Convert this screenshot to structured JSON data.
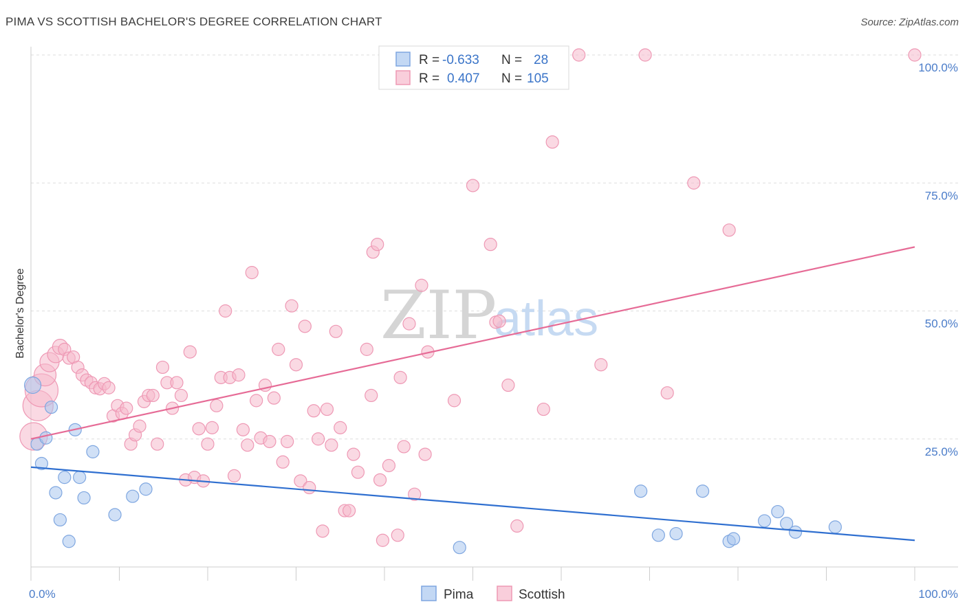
{
  "title": "PIMA VS SCOTTISH BACHELOR'S DEGREE CORRELATION CHART",
  "source": "Source: ZipAtlas.com",
  "watermark": {
    "zip": "ZIP",
    "atlas": "atlas"
  },
  "colors": {
    "pima": "#a9c7ef",
    "pima_stroke": "#7ea6e0",
    "pima_line": "#2f6fd0",
    "scottish": "#f6b9cc",
    "scottish_stroke": "#ee98b4",
    "scottish_line": "#e66b96",
    "grid": "#dddddd",
    "tick_label": "#4a7cc9"
  },
  "legend": {
    "rows": [
      {
        "r_label": "R =",
        "r_value": "-0.633",
        "n_label": "N =",
        "n_value": "28"
      },
      {
        "r_label": "R =",
        "r_value": "0.407",
        "n_label": "N =",
        "n_value": "105"
      }
    ]
  },
  "chart_data": {
    "type": "scatter",
    "title": "PIMA VS SCOTTISH BACHELOR'S DEGREE CORRELATION CHART",
    "xlabel": "",
    "ylabel": "Bachelor's Degree",
    "xlim": [
      0,
      100
    ],
    "ylim": [
      0,
      100
    ],
    "x_ticks": [
      "0.0%",
      "100.0%"
    ],
    "y_ticks": [
      "25.0%",
      "50.0%",
      "75.0%",
      "100.0%"
    ],
    "y_tick_values": [
      25,
      50,
      75,
      100
    ],
    "grid": true,
    "legend_position": "top-center",
    "series": [
      {
        "name": "Pima",
        "r": -0.633,
        "n": 28,
        "trend": [
          [
            0,
            19.5
          ],
          [
            100,
            5.2
          ]
        ],
        "points": [
          {
            "x": 0.2,
            "y": 35.5,
            "s": 12
          },
          {
            "x": 0.7,
            "y": 24.0,
            "s": 9
          },
          {
            "x": 1.2,
            "y": 20.2,
            "s": 9
          },
          {
            "x": 1.7,
            "y": 25.2,
            "s": 9
          },
          {
            "x": 2.3,
            "y": 31.2,
            "s": 9
          },
          {
            "x": 2.8,
            "y": 14.5,
            "s": 9
          },
          {
            "x": 3.3,
            "y": 9.2,
            "s": 9
          },
          {
            "x": 3.8,
            "y": 17.5,
            "s": 9
          },
          {
            "x": 4.3,
            "y": 5.0,
            "s": 9
          },
          {
            "x": 5.0,
            "y": 26.8,
            "s": 9
          },
          {
            "x": 5.5,
            "y": 17.5,
            "s": 9
          },
          {
            "x": 6.0,
            "y": 13.5,
            "s": 9
          },
          {
            "x": 7.0,
            "y": 22.5,
            "s": 9
          },
          {
            "x": 9.5,
            "y": 10.2,
            "s": 9
          },
          {
            "x": 11.5,
            "y": 13.8,
            "s": 9
          },
          {
            "x": 13.0,
            "y": 15.2,
            "s": 9
          },
          {
            "x": 48.5,
            "y": 3.8,
            "s": 9
          },
          {
            "x": 69.0,
            "y": 14.8,
            "s": 9
          },
          {
            "x": 71.0,
            "y": 6.2,
            "s": 9
          },
          {
            "x": 73.0,
            "y": 6.5,
            "s": 9
          },
          {
            "x": 76.0,
            "y": 14.8,
            "s": 9
          },
          {
            "x": 79.0,
            "y": 5.0,
            "s": 9
          },
          {
            "x": 79.5,
            "y": 5.5,
            "s": 9
          },
          {
            "x": 83.0,
            "y": 9.0,
            "s": 9
          },
          {
            "x": 84.5,
            "y": 10.8,
            "s": 9
          },
          {
            "x": 85.5,
            "y": 8.5,
            "s": 9
          },
          {
            "x": 86.5,
            "y": 6.8,
            "s": 9
          },
          {
            "x": 91.0,
            "y": 7.8,
            "s": 9
          }
        ]
      },
      {
        "name": "Scottish",
        "r": 0.407,
        "n": 105,
        "trend": [
          [
            0,
            25.0
          ],
          [
            100,
            62.5
          ]
        ],
        "points": [
          {
            "x": 0.3,
            "y": 25.5,
            "s": 20
          },
          {
            "x": 0.8,
            "y": 31.5,
            "s": 22
          },
          {
            "x": 1.2,
            "y": 34.5,
            "s": 24
          },
          {
            "x": 1.6,
            "y": 37.5,
            "s": 16
          },
          {
            "x": 2.1,
            "y": 40.0,
            "s": 14
          },
          {
            "x": 2.8,
            "y": 41.5,
            "s": 12
          },
          {
            "x": 3.3,
            "y": 43.0,
            "s": 11
          },
          {
            "x": 3.8,
            "y": 42.5,
            "s": 9
          },
          {
            "x": 4.3,
            "y": 40.8,
            "s": 9
          },
          {
            "x": 4.8,
            "y": 41.0,
            "s": 9
          },
          {
            "x": 5.3,
            "y": 39.0,
            "s": 9
          },
          {
            "x": 5.8,
            "y": 37.5,
            "s": 9
          },
          {
            "x": 6.3,
            "y": 36.5,
            "s": 9
          },
          {
            "x": 6.8,
            "y": 36.0,
            "s": 9
          },
          {
            "x": 7.3,
            "y": 35.0,
            "s": 9
          },
          {
            "x": 7.8,
            "y": 34.8,
            "s": 9
          },
          {
            "x": 8.3,
            "y": 35.8,
            "s": 9
          },
          {
            "x": 8.8,
            "y": 35.0,
            "s": 9
          },
          {
            "x": 9.3,
            "y": 29.5,
            "s": 9
          },
          {
            "x": 9.8,
            "y": 31.5,
            "s": 9
          },
          {
            "x": 10.3,
            "y": 30.0,
            "s": 9
          },
          {
            "x": 10.8,
            "y": 31.0,
            "s": 9
          },
          {
            "x": 11.3,
            "y": 24.0,
            "s": 9
          },
          {
            "x": 11.8,
            "y": 25.8,
            "s": 9
          },
          {
            "x": 12.3,
            "y": 27.5,
            "s": 9
          },
          {
            "x": 12.8,
            "y": 32.3,
            "s": 9
          },
          {
            "x": 13.3,
            "y": 33.5,
            "s": 9
          },
          {
            "x": 13.8,
            "y": 33.5,
            "s": 9
          },
          {
            "x": 14.3,
            "y": 24.0,
            "s": 9
          },
          {
            "x": 14.9,
            "y": 39.0,
            "s": 9
          },
          {
            "x": 15.4,
            "y": 36.0,
            "s": 9
          },
          {
            "x": 16.0,
            "y": 31.0,
            "s": 9
          },
          {
            "x": 16.5,
            "y": 36.0,
            "s": 9
          },
          {
            "x": 17.0,
            "y": 33.5,
            "s": 9
          },
          {
            "x": 17.5,
            "y": 17.0,
            "s": 9
          },
          {
            "x": 18.0,
            "y": 42.0,
            "s": 9
          },
          {
            "x": 18.5,
            "y": 17.5,
            "s": 9
          },
          {
            "x": 19.0,
            "y": 27.0,
            "s": 9
          },
          {
            "x": 19.5,
            "y": 16.8,
            "s": 9
          },
          {
            "x": 20.0,
            "y": 24.0,
            "s": 9
          },
          {
            "x": 20.5,
            "y": 27.2,
            "s": 9
          },
          {
            "x": 21.0,
            "y": 31.5,
            "s": 9
          },
          {
            "x": 21.5,
            "y": 37.0,
            "s": 9
          },
          {
            "x": 22.0,
            "y": 50.0,
            "s": 9
          },
          {
            "x": 22.5,
            "y": 37.0,
            "s": 9
          },
          {
            "x": 23.0,
            "y": 17.8,
            "s": 9
          },
          {
            "x": 23.5,
            "y": 37.5,
            "s": 9
          },
          {
            "x": 24.0,
            "y": 26.8,
            "s": 9
          },
          {
            "x": 24.5,
            "y": 23.8,
            "s": 9
          },
          {
            "x": 25.0,
            "y": 57.5,
            "s": 9
          },
          {
            "x": 25.5,
            "y": 32.5,
            "s": 9
          },
          {
            "x": 26.0,
            "y": 25.2,
            "s": 9
          },
          {
            "x": 26.5,
            "y": 35.5,
            "s": 9
          },
          {
            "x": 27.0,
            "y": 24.5,
            "s": 9
          },
          {
            "x": 27.5,
            "y": 33.0,
            "s": 9
          },
          {
            "x": 28.0,
            "y": 42.5,
            "s": 9
          },
          {
            "x": 28.5,
            "y": 20.5,
            "s": 9
          },
          {
            "x": 29.0,
            "y": 24.5,
            "s": 9
          },
          {
            "x": 29.5,
            "y": 51.0,
            "s": 9
          },
          {
            "x": 30.0,
            "y": 39.5,
            "s": 9
          },
          {
            "x": 30.5,
            "y": 16.8,
            "s": 9
          },
          {
            "x": 31.0,
            "y": 47.0,
            "s": 9
          },
          {
            "x": 31.5,
            "y": 15.5,
            "s": 9
          },
          {
            "x": 32.0,
            "y": 30.5,
            "s": 9
          },
          {
            "x": 32.5,
            "y": 25.0,
            "s": 9
          },
          {
            "x": 33.0,
            "y": 7.0,
            "s": 9
          },
          {
            "x": 33.5,
            "y": 30.8,
            "s": 9
          },
          {
            "x": 34.0,
            "y": 23.8,
            "s": 9
          },
          {
            "x": 34.5,
            "y": 46.0,
            "s": 9
          },
          {
            "x": 35.0,
            "y": 27.2,
            "s": 9
          },
          {
            "x": 35.5,
            "y": 11.0,
            "s": 9
          },
          {
            "x": 36.0,
            "y": 11.0,
            "s": 9
          },
          {
            "x": 36.5,
            "y": 22.0,
            "s": 9
          },
          {
            "x": 37.0,
            "y": 18.5,
            "s": 9
          },
          {
            "x": 38.0,
            "y": 42.5,
            "s": 9
          },
          {
            "x": 38.7,
            "y": 61.5,
            "s": 9
          },
          {
            "x": 38.5,
            "y": 33.5,
            "s": 9
          },
          {
            "x": 39.2,
            "y": 63.0,
            "s": 9
          },
          {
            "x": 39.5,
            "y": 17.0,
            "s": 9
          },
          {
            "x": 39.8,
            "y": 5.2,
            "s": 9
          },
          {
            "x": 40.5,
            "y": 19.8,
            "s": 9
          },
          {
            "x": 41.5,
            "y": 6.2,
            "s": 9
          },
          {
            "x": 41.8,
            "y": 37.0,
            "s": 9
          },
          {
            "x": 42.2,
            "y": 23.5,
            "s": 9
          },
          {
            "x": 42.8,
            "y": 47.5,
            "s": 9
          },
          {
            "x": 43.4,
            "y": 14.2,
            "s": 9
          },
          {
            "x": 44.2,
            "y": 55.0,
            "s": 9
          },
          {
            "x": 44.6,
            "y": 22.0,
            "s": 9
          },
          {
            "x": 44.9,
            "y": 42.0,
            "s": 9
          },
          {
            "x": 47.9,
            "y": 32.5,
            "s": 9
          },
          {
            "x": 50.0,
            "y": 74.5,
            "s": 9
          },
          {
            "x": 52.0,
            "y": 63.0,
            "s": 9
          },
          {
            "x": 52.6,
            "y": 47.8,
            "s": 9
          },
          {
            "x": 53.0,
            "y": 48.0,
            "s": 9
          },
          {
            "x": 54.0,
            "y": 35.5,
            "s": 9
          },
          {
            "x": 55.0,
            "y": 8.0,
            "s": 9
          },
          {
            "x": 58.0,
            "y": 30.8,
            "s": 9
          },
          {
            "x": 59.0,
            "y": 83.0,
            "s": 9
          },
          {
            "x": 62.0,
            "y": 100.0,
            "s": 9
          },
          {
            "x": 64.5,
            "y": 39.5,
            "s": 9
          },
          {
            "x": 69.5,
            "y": 100.0,
            "s": 9
          },
          {
            "x": 72.0,
            "y": 34.0,
            "s": 9
          },
          {
            "x": 75.0,
            "y": 75.0,
            "s": 9
          },
          {
            "x": 79.0,
            "y": 65.8,
            "s": 9
          },
          {
            "x": 100.0,
            "y": 100.0,
            "s": 9
          }
        ]
      }
    ]
  },
  "bottom_legend": [
    {
      "name": "Pima"
    },
    {
      "name": "Scottish"
    }
  ]
}
